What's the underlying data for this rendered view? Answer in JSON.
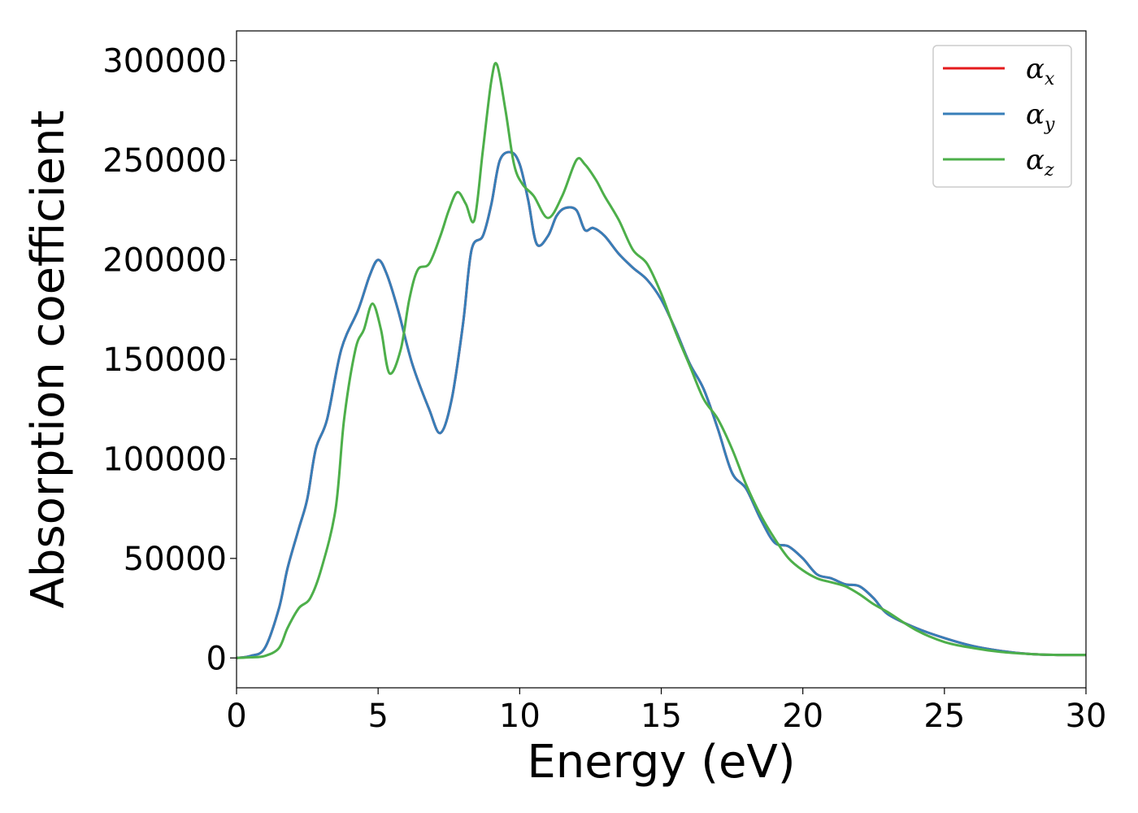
{
  "chart_data": {
    "type": "line",
    "xlabel": "Energy (eV)",
    "ylabel": "Absorption coefficient",
    "xlim": [
      0,
      30
    ],
    "ylim": [
      -15000,
      315000
    ],
    "xticks": [
      0,
      5,
      10,
      15,
      20,
      25,
      30
    ],
    "yticks": [
      0,
      50000,
      100000,
      150000,
      200000,
      250000,
      300000
    ],
    "grid": false,
    "legend_position": "top-right",
    "series": [
      {
        "name": "αx",
        "base": "α",
        "sub": "x",
        "color": "#e41a1c",
        "x": [
          0,
          0.5,
          1,
          1.5,
          1.8,
          2.2,
          2.5,
          2.8,
          3.2,
          3.7,
          4.3,
          4.7,
          5.0,
          5.3,
          5.7,
          6.2,
          6.8,
          7.2,
          7.6,
          8.0,
          8.3,
          8.7,
          9.0,
          9.3,
          9.7,
          10.0,
          10.3,
          10.6,
          11.0,
          11.3,
          11.6,
          12.0,
          12.3,
          12.6,
          13.0,
          13.5,
          14.0,
          14.5,
          15.0,
          15.5,
          16.0,
          16.5,
          17.0,
          17.5,
          18.0,
          18.5,
          19.0,
          19.5,
          20.0,
          20.5,
          21.0,
          21.5,
          22.0,
          22.5,
          23.0,
          24.0,
          25.0,
          26.0,
          27.0,
          28.0,
          29.0,
          30.0
        ],
        "y": [
          0,
          1000,
          5000,
          25000,
          45000,
          65000,
          80000,
          105000,
          120000,
          155000,
          175000,
          192000,
          200000,
          193000,
          175000,
          148000,
          125000,
          113000,
          130000,
          168000,
          205000,
          212000,
          228000,
          250000,
          254000,
          248000,
          230000,
          208000,
          212000,
          222000,
          226000,
          225000,
          215000,
          216000,
          212000,
          203000,
          196000,
          190000,
          180000,
          165000,
          148000,
          135000,
          115000,
          93000,
          85000,
          70000,
          58000,
          56000,
          50000,
          42000,
          40000,
          37000,
          36000,
          30000,
          22000,
          15000,
          10000,
          6000,
          3500,
          2000,
          1500,
          1500
        ]
      },
      {
        "name": "αy",
        "base": "α",
        "sub": "y",
        "color": "#377eb8",
        "x": [
          0,
          0.5,
          1,
          1.5,
          1.8,
          2.2,
          2.5,
          2.8,
          3.2,
          3.7,
          4.3,
          4.7,
          5.0,
          5.3,
          5.7,
          6.2,
          6.8,
          7.2,
          7.6,
          8.0,
          8.3,
          8.7,
          9.0,
          9.3,
          9.7,
          10.0,
          10.3,
          10.6,
          11.0,
          11.3,
          11.6,
          12.0,
          12.3,
          12.6,
          13.0,
          13.5,
          14.0,
          14.5,
          15.0,
          15.5,
          16.0,
          16.5,
          17.0,
          17.5,
          18.0,
          18.5,
          19.0,
          19.5,
          20.0,
          20.5,
          21.0,
          21.5,
          22.0,
          22.5,
          23.0,
          24.0,
          25.0,
          26.0,
          27.0,
          28.0,
          29.0,
          30.0
        ],
        "y": [
          0,
          1000,
          5000,
          25000,
          45000,
          65000,
          80000,
          105000,
          120000,
          155000,
          175000,
          192000,
          200000,
          193000,
          175000,
          148000,
          125000,
          113000,
          130000,
          168000,
          205000,
          212000,
          228000,
          250000,
          254000,
          248000,
          230000,
          208000,
          212000,
          222000,
          226000,
          225000,
          215000,
          216000,
          212000,
          203000,
          196000,
          190000,
          180000,
          165000,
          148000,
          135000,
          115000,
          93000,
          85000,
          70000,
          58000,
          56000,
          50000,
          42000,
          40000,
          37000,
          36000,
          30000,
          22000,
          15000,
          10000,
          6000,
          3500,
          2000,
          1500,
          1500
        ]
      },
      {
        "name": "αz",
        "base": "α",
        "sub": "z",
        "color": "#4daf4a",
        "x": [
          0,
          0.5,
          1,
          1.5,
          1.8,
          2.2,
          2.6,
          3.0,
          3.5,
          3.8,
          4.2,
          4.5,
          4.8,
          5.1,
          5.4,
          5.8,
          6.1,
          6.4,
          6.8,
          7.2,
          7.5,
          7.8,
          8.1,
          8.4,
          8.7,
          9.0,
          9.2,
          9.5,
          9.8,
          10.1,
          10.5,
          11.0,
          11.5,
          12.0,
          12.3,
          12.7,
          13.0,
          13.5,
          14.0,
          14.5,
          15.0,
          15.5,
          16.0,
          16.5,
          17.0,
          17.5,
          18.0,
          18.5,
          19.0,
          19.5,
          20.0,
          20.5,
          21.0,
          21.5,
          22.0,
          22.5,
          23.0,
          24.0,
          25.0,
          26.0,
          27.0,
          28.0,
          29.0,
          30.0
        ],
        "y": [
          0,
          300,
          1000,
          5000,
          15000,
          25000,
          30000,
          45000,
          75000,
          120000,
          155000,
          165000,
          178000,
          165000,
          143000,
          155000,
          180000,
          195000,
          198000,
          212000,
          225000,
          234000,
          228000,
          220000,
          255000,
          290000,
          298000,
          275000,
          248000,
          238000,
          232000,
          221000,
          232000,
          250000,
          248000,
          240000,
          232000,
          220000,
          205000,
          198000,
          183000,
          164000,
          147000,
          130000,
          120000,
          105000,
          87000,
          72000,
          60000,
          50000,
          44000,
          40000,
          38000,
          36000,
          32000,
          27000,
          23000,
          14000,
          8000,
          5000,
          3000,
          2000,
          1500,
          1500
        ]
      }
    ]
  }
}
